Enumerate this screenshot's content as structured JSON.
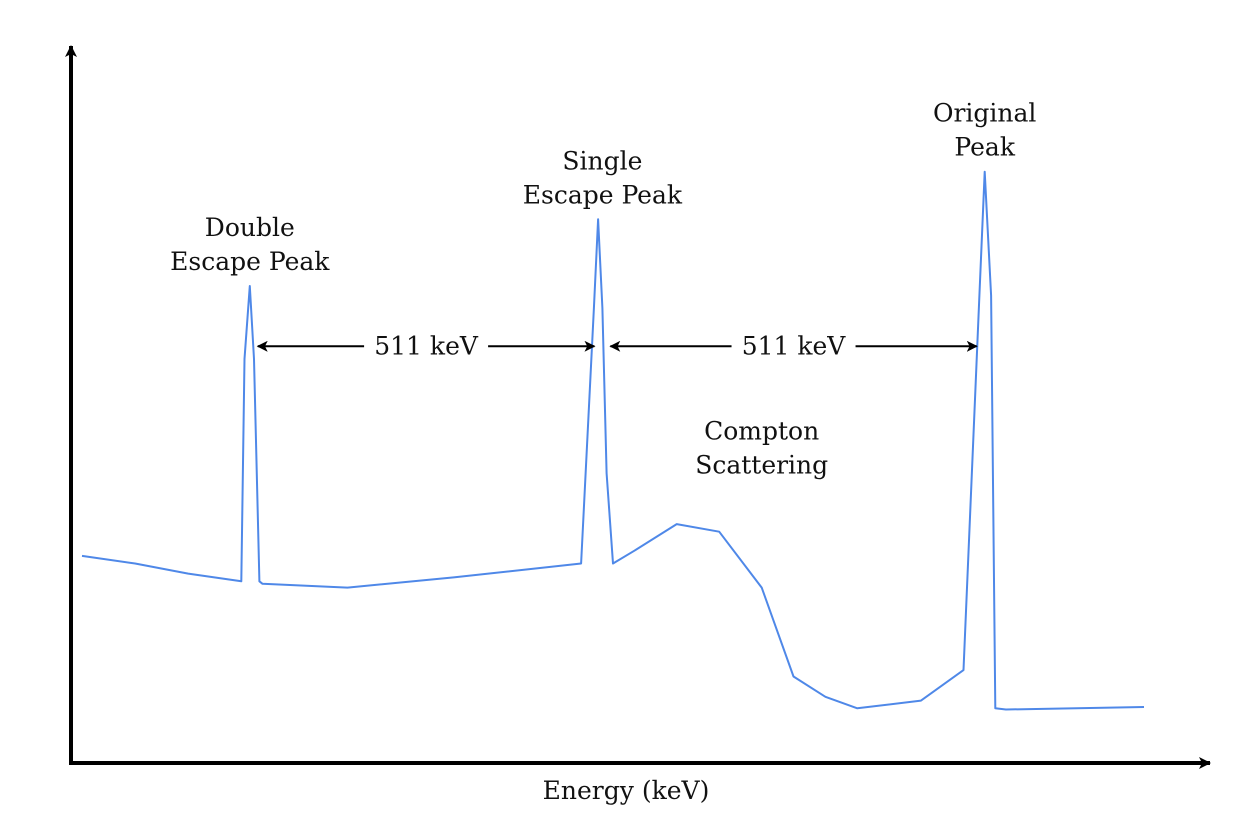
{
  "chart_data": {
    "type": "line",
    "title": "",
    "xlabel": "Energy (keV)",
    "ylabel": "",
    "grid": false,
    "legend": "none",
    "xlim": [
      0,
      1000
    ],
    "ylim": [
      0,
      1000
    ],
    "series": [
      {
        "color": "#4f88e8",
        "x": [
          0,
          50,
          100,
          150,
          153,
          158,
          162,
          167,
          170,
          250,
          350,
          470,
          482,
          486,
          490,
          494,
          500,
          520,
          560,
          600,
          640,
          670,
          700,
          730,
          790,
          830,
          845,
          850,
          856,
          860,
          870,
          1000
        ],
        "y": [
          290,
          278,
          262,
          250,
          600,
          715,
          600,
          250,
          246,
          240,
          256,
          278,
          680,
          820,
          680,
          420,
          278,
          298,
          340,
          328,
          240,
          100,
          68,
          50,
          62,
          110,
          700,
          895,
          700,
          50,
          48,
          52
        ]
      }
    ],
    "annotations": [
      {
        "text": [
          "Double",
          "Escape Peak"
        ],
        "x": 158
      },
      {
        "text": [
          "Single",
          "Escape Peak"
        ],
        "x": 490
      },
      {
        "text": [
          "Original",
          "Peak"
        ],
        "x": 850
      },
      {
        "text": [
          "Compton",
          "Scattering"
        ],
        "x": 640
      },
      {
        "text": "511 keV",
        "x_from": 158,
        "x_to": 490
      },
      {
        "text": "511 keV",
        "x_from": 490,
        "x_to": 850
      }
    ]
  }
}
